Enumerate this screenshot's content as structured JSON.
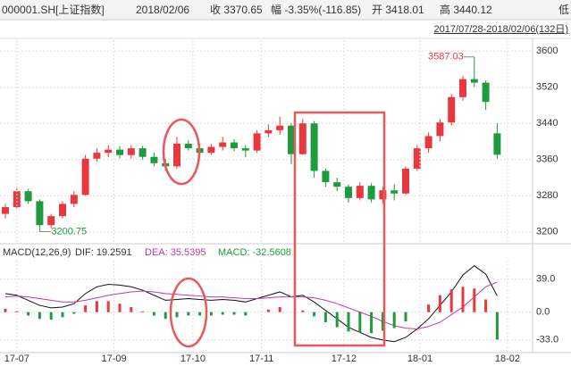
{
  "header": {
    "symbol": "000001.SH[上证指数]",
    "date": "2018/02/06",
    "close": "收 3370.65",
    "change": "幅 -3.35%(-116.85)",
    "open": "开 3418.01",
    "high": "高 3440.12",
    "low": "低",
    "range": "2017/07/28-2018/02/06(132日)"
  },
  "chart_data": [
    {
      "type": "candlestick",
      "up_color": "#e8383d",
      "down_color": "#1e9b3c",
      "ylim": [
        3176,
        3624
      ],
      "yticks": [
        3600,
        3520,
        3440,
        3360,
        3280,
        3200
      ],
      "grid": true,
      "high_label": "3587.03",
      "low_label": "3200.75",
      "ohlc": [
        [
          3240,
          3262,
          3230,
          3255
        ],
        [
          3255,
          3300,
          3250,
          3290
        ],
        [
          3290,
          3295,
          3262,
          3268
        ],
        [
          3268,
          3272,
          3200.75,
          3215
        ],
        [
          3215,
          3240,
          3208,
          3235
        ],
        [
          3235,
          3268,
          3230,
          3262
        ],
        [
          3262,
          3290,
          3255,
          3282
        ],
        [
          3282,
          3370,
          3280,
          3362
        ],
        [
          3362,
          3385,
          3355,
          3375
        ],
        [
          3375,
          3392,
          3365,
          3382
        ],
        [
          3382,
          3390,
          3362,
          3370
        ],
        [
          3370,
          3392,
          3362,
          3385
        ],
        [
          3385,
          3390,
          3360,
          3366
        ],
        [
          3366,
          3375,
          3345,
          3352
        ],
        [
          3352,
          3362,
          3335,
          3345
        ],
        [
          3345,
          3410,
          3340,
          3395
        ],
        [
          3395,
          3402,
          3380,
          3385
        ],
        [
          3385,
          3395,
          3368,
          3375
        ],
        [
          3375,
          3395,
          3370,
          3388
        ],
        [
          3388,
          3410,
          3380,
          3398
        ],
        [
          3398,
          3405,
          3378,
          3385
        ],
        [
          3385,
          3392,
          3365,
          3380
        ],
        [
          3380,
          3425,
          3375,
          3418
        ],
        [
          3418,
          3438,
          3410,
          3425
        ],
        [
          3425,
          3455,
          3415,
          3435
        ],
        [
          3435,
          3440,
          3350,
          3372
        ],
        [
          3372,
          3450,
          3370,
          3440
        ],
        [
          3440,
          3445,
          3320,
          3335
        ],
        [
          3335,
          3340,
          3300,
          3310
        ],
        [
          3310,
          3320,
          3290,
          3300
        ],
        [
          3300,
          3305,
          3265,
          3275
        ],
        [
          3275,
          3310,
          3270,
          3302
        ],
        [
          3302,
          3308,
          3265,
          3272
        ],
        [
          3272,
          3300,
          3262,
          3292
        ],
        [
          3292,
          3305,
          3270,
          3285
        ],
        [
          3285,
          3345,
          3282,
          3340
        ],
        [
          3340,
          3392,
          3335,
          3385
        ],
        [
          3385,
          3420,
          3375,
          3412
        ],
        [
          3412,
          3450,
          3400,
          3442
        ],
        [
          3442,
          3505,
          3435,
          3498
        ],
        [
          3498,
          3545,
          3490,
          3538
        ],
        [
          3538,
          3587.03,
          3520,
          3530
        ],
        [
          3530,
          3535,
          3470,
          3487.5
        ],
        [
          3418.01,
          3440.12,
          3362,
          3370.65
        ]
      ]
    },
    {
      "type": "macd",
      "title": "MACD(12,26,9)",
      "ylim": [
        -48,
        61
      ],
      "yticks": [
        {
          "value": 39,
          "label": "39.0"
        },
        {
          "value": 0,
          "label": "0.0"
        },
        {
          "value": -33,
          "label": "-33.0"
        }
      ],
      "grid": true,
      "xticks": [
        {
          "value": 1,
          "label": "17-07"
        },
        {
          "value": 9.5,
          "label": "17-09"
        },
        {
          "value": 16.4,
          "label": "17-10"
        },
        {
          "value": 22.4,
          "label": "17-11"
        },
        {
          "value": 29.6,
          "label": "17-12"
        },
        {
          "value": 36.25,
          "label": "18-01"
        },
        {
          "value": 43.9,
          "label": "18-02"
        }
      ],
      "legend": [
        "DIF: 19.2591",
        "DEA: 35.5395",
        "MACD: -32.5608"
      ],
      "series": [
        {
          "name": "DIF",
          "color": "#111111",
          "values": [
            22,
            20,
            14,
            8,
            5,
            6,
            10,
            22,
            30,
            33,
            32,
            30,
            26,
            20,
            14,
            15,
            16,
            15,
            14,
            15,
            14,
            12,
            16,
            20,
            24,
            18,
            20,
            12,
            2,
            -8,
            -18,
            -24,
            -30,
            -33,
            -35,
            -30,
            -20,
            -8,
            8,
            24,
            44,
            55,
            45,
            19.2591
          ]
        },
        {
          "name": "DEA",
          "color": "#c0399f",
          "values": [
            18,
            19,
            18,
            16,
            14,
            12,
            12,
            14,
            17,
            20,
            22,
            24,
            25,
            24,
            22,
            21,
            20,
            19,
            18,
            18,
            17,
            16,
            16,
            17,
            18,
            18,
            18,
            17,
            14,
            10,
            5,
            0,
            -5,
            -11,
            -16,
            -19,
            -20,
            -17,
            -12,
            -3,
            6,
            18,
            30,
            35.5395
          ]
        },
        {
          "name": "MACD",
          "up_color": "#e8383d",
          "down_color": "#1e9b3c",
          "values": [
            4,
            1,
            -4,
            -8,
            -9,
            -6,
            -2,
            8,
            13,
            13,
            10,
            6,
            1,
            -4,
            -8,
            -6,
            -4,
            -4,
            -4,
            -3,
            -3,
            -4,
            0,
            3,
            6,
            0,
            2,
            -5,
            -12,
            -18,
            -23,
            -24,
            -25,
            -22,
            -19,
            -11,
            0,
            9,
            20,
            27,
            30,
            28,
            15,
            -32.5608
          ]
        }
      ]
    }
  ]
}
